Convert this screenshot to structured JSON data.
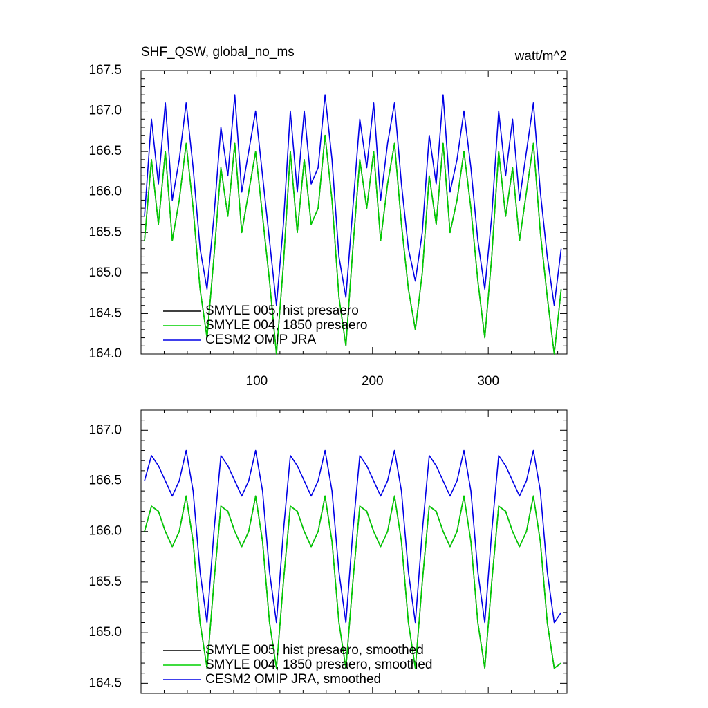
{
  "chart_data": [
    {
      "type": "line",
      "title": "SHF_QSW, global_no_ms",
      "units": "watt/m^2",
      "x": [
        3,
        9,
        15,
        21,
        27,
        33,
        39,
        45,
        51,
        57,
        63,
        69,
        75,
        81,
        87,
        93,
        99,
        105,
        111,
        117,
        123,
        129,
        135,
        141,
        147,
        153,
        159,
        165,
        171,
        177,
        183,
        189,
        195,
        201,
        207,
        213,
        219,
        225,
        231,
        237,
        243,
        249,
        255,
        261,
        267,
        273,
        279,
        285,
        291,
        297,
        303,
        309,
        315,
        321,
        327,
        333,
        339,
        345,
        351,
        357,
        363
      ],
      "xlim": [
        0,
        368
      ],
      "xticks": [
        100,
        200,
        300
      ],
      "xtick_labels": true,
      "ylim": [
        164,
        167.5
      ],
      "yticks": [
        {
          "value": 164,
          "label": "164.0"
        },
        164.5,
        {
          "value": 165,
          "label": "165.0"
        },
        165.5,
        {
          "value": 166,
          "label": "166.0"
        },
        166.5,
        {
          "value": 167,
          "label": "167.0"
        },
        167.5
      ],
      "legend": "lower left",
      "series": [
        {
          "name": "SMYLE 005, hist presaero",
          "color": "#000000",
          "values": [
            165.4,
            166.4,
            165.6,
            166.5,
            165.4,
            165.9,
            166.6,
            165.8,
            164.8,
            164.2,
            165.2,
            166.3,
            165.7,
            166.6,
            165.5,
            166.0,
            166.5,
            165.7,
            164.9,
            164.0,
            165.1,
            166.5,
            165.5,
            166.4,
            165.6,
            165.8,
            166.7,
            165.9,
            164.7,
            164.1,
            165.3,
            166.4,
            165.8,
            166.5,
            165.4,
            166.1,
            166.6,
            165.6,
            164.8,
            164.3,
            165.0,
            166.2,
            165.6,
            166.6,
            165.5,
            165.9,
            166.5,
            165.8,
            164.9,
            164.2,
            165.2,
            166.5,
            165.7,
            166.3,
            165.4,
            166.0,
            166.6,
            165.5,
            164.7,
            164.0,
            164.8
          ]
        },
        {
          "name": "SMYLE 004, 1850 presaero",
          "color": "#00d000",
          "values": [
            165.4,
            166.4,
            165.6,
            166.5,
            165.4,
            165.9,
            166.6,
            165.8,
            164.8,
            164.2,
            165.2,
            166.3,
            165.7,
            166.6,
            165.5,
            166.0,
            166.5,
            165.7,
            164.9,
            164.0,
            165.1,
            166.5,
            165.5,
            166.4,
            165.6,
            165.8,
            166.7,
            165.9,
            164.7,
            164.1,
            165.3,
            166.4,
            165.8,
            166.5,
            165.4,
            166.1,
            166.6,
            165.6,
            164.8,
            164.3,
            165.0,
            166.2,
            165.6,
            166.6,
            165.5,
            165.9,
            166.5,
            165.8,
            164.9,
            164.2,
            165.2,
            166.5,
            165.7,
            166.3,
            165.4,
            166.0,
            166.6,
            165.5,
            164.7,
            164.0,
            164.8
          ]
        },
        {
          "name": "CESM2 OMIP JRA",
          "color": "#0000e6",
          "values": [
            165.7,
            166.9,
            166.1,
            167.1,
            165.9,
            166.4,
            167.1,
            166.3,
            165.3,
            164.8,
            165.7,
            166.8,
            166.2,
            167.2,
            166.0,
            166.5,
            167.0,
            166.2,
            165.4,
            164.6,
            165.6,
            167.0,
            166.0,
            167.0,
            166.1,
            166.3,
            167.2,
            166.4,
            165.2,
            164.7,
            165.8,
            166.9,
            166.3,
            167.1,
            165.9,
            166.6,
            167.1,
            166.1,
            165.3,
            164.9,
            165.5,
            166.7,
            166.1,
            167.2,
            166.0,
            166.4,
            167.0,
            166.3,
            165.4,
            164.8,
            165.7,
            167.0,
            166.2,
            166.9,
            165.9,
            166.5,
            167.1,
            166.0,
            165.2,
            164.6,
            165.3
          ]
        }
      ]
    },
    {
      "type": "line",
      "x": [
        3,
        9,
        15,
        21,
        27,
        33,
        39,
        45,
        51,
        57,
        63,
        69,
        75,
        81,
        87,
        93,
        99,
        105,
        111,
        117,
        123,
        129,
        135,
        141,
        147,
        153,
        159,
        165,
        171,
        177,
        183,
        189,
        195,
        201,
        207,
        213,
        219,
        225,
        231,
        237,
        243,
        249,
        255,
        261,
        267,
        273,
        279,
        285,
        291,
        297,
        303,
        309,
        315,
        321,
        327,
        333,
        339,
        345,
        351,
        357,
        363
      ],
      "xlim": [
        0,
        368
      ],
      "xticks": [
        100,
        200,
        300
      ],
      "xtick_labels": false,
      "ylim": [
        164.4,
        167.2
      ],
      "yticks": [
        164.5,
        {
          "value": 165,
          "label": "165.0"
        },
        165.5,
        {
          "value": 166,
          "label": "166.0"
        },
        166.5,
        {
          "value": 167,
          "label": "167.0"
        }
      ],
      "legend": "lower left",
      "series": [
        {
          "name": "SMYLE 005, hist presaero, smoothed",
          "color": "#000000",
          "values": [
            166.0,
            166.25,
            166.2,
            166.0,
            165.85,
            166.0,
            166.35,
            165.9,
            165.1,
            164.65,
            165.5,
            166.25,
            166.2,
            166.0,
            165.85,
            166.0,
            166.35,
            165.9,
            165.1,
            164.65,
            165.5,
            166.25,
            166.2,
            166.0,
            165.85,
            166.0,
            166.35,
            165.9,
            165.1,
            164.65,
            165.5,
            166.25,
            166.2,
            166.0,
            165.85,
            166.0,
            166.35,
            165.9,
            165.1,
            164.65,
            165.5,
            166.25,
            166.2,
            166.0,
            165.85,
            166.0,
            166.35,
            165.9,
            165.1,
            164.65,
            165.5,
            166.25,
            166.2,
            166.0,
            165.85,
            166.0,
            166.35,
            165.9,
            165.1,
            164.65,
            164.7
          ]
        },
        {
          "name": "SMYLE 004, 1850 presaero, smoothed",
          "color": "#00d000",
          "values": [
            166.0,
            166.25,
            166.2,
            166.0,
            165.85,
            166.0,
            166.35,
            165.9,
            165.1,
            164.65,
            165.5,
            166.25,
            166.2,
            166.0,
            165.85,
            166.0,
            166.35,
            165.9,
            165.1,
            164.65,
            165.5,
            166.25,
            166.2,
            166.0,
            165.85,
            166.0,
            166.35,
            165.9,
            165.1,
            164.65,
            165.5,
            166.25,
            166.2,
            166.0,
            165.85,
            166.0,
            166.35,
            165.9,
            165.1,
            164.65,
            165.5,
            166.25,
            166.2,
            166.0,
            165.85,
            166.0,
            166.35,
            165.9,
            165.1,
            164.65,
            165.5,
            166.25,
            166.2,
            166.0,
            165.85,
            166.0,
            166.35,
            165.9,
            165.1,
            164.65,
            164.7
          ]
        },
        {
          "name": "CESM2 OMIP JRA, smoothed",
          "color": "#0000e6",
          "values": [
            166.5,
            166.75,
            166.65,
            166.5,
            166.35,
            166.5,
            166.8,
            166.4,
            165.6,
            165.1,
            166.0,
            166.75,
            166.65,
            166.5,
            166.35,
            166.5,
            166.8,
            166.4,
            165.6,
            165.1,
            166.0,
            166.75,
            166.65,
            166.5,
            166.35,
            166.5,
            166.8,
            166.4,
            165.6,
            165.1,
            166.0,
            166.75,
            166.65,
            166.5,
            166.35,
            166.5,
            166.8,
            166.4,
            165.6,
            165.1,
            166.0,
            166.75,
            166.65,
            166.5,
            166.35,
            166.5,
            166.8,
            166.4,
            165.6,
            165.1,
            166.0,
            166.75,
            166.65,
            166.5,
            166.35,
            166.5,
            166.8,
            166.4,
            165.6,
            165.1,
            165.2
          ]
        }
      ]
    }
  ]
}
